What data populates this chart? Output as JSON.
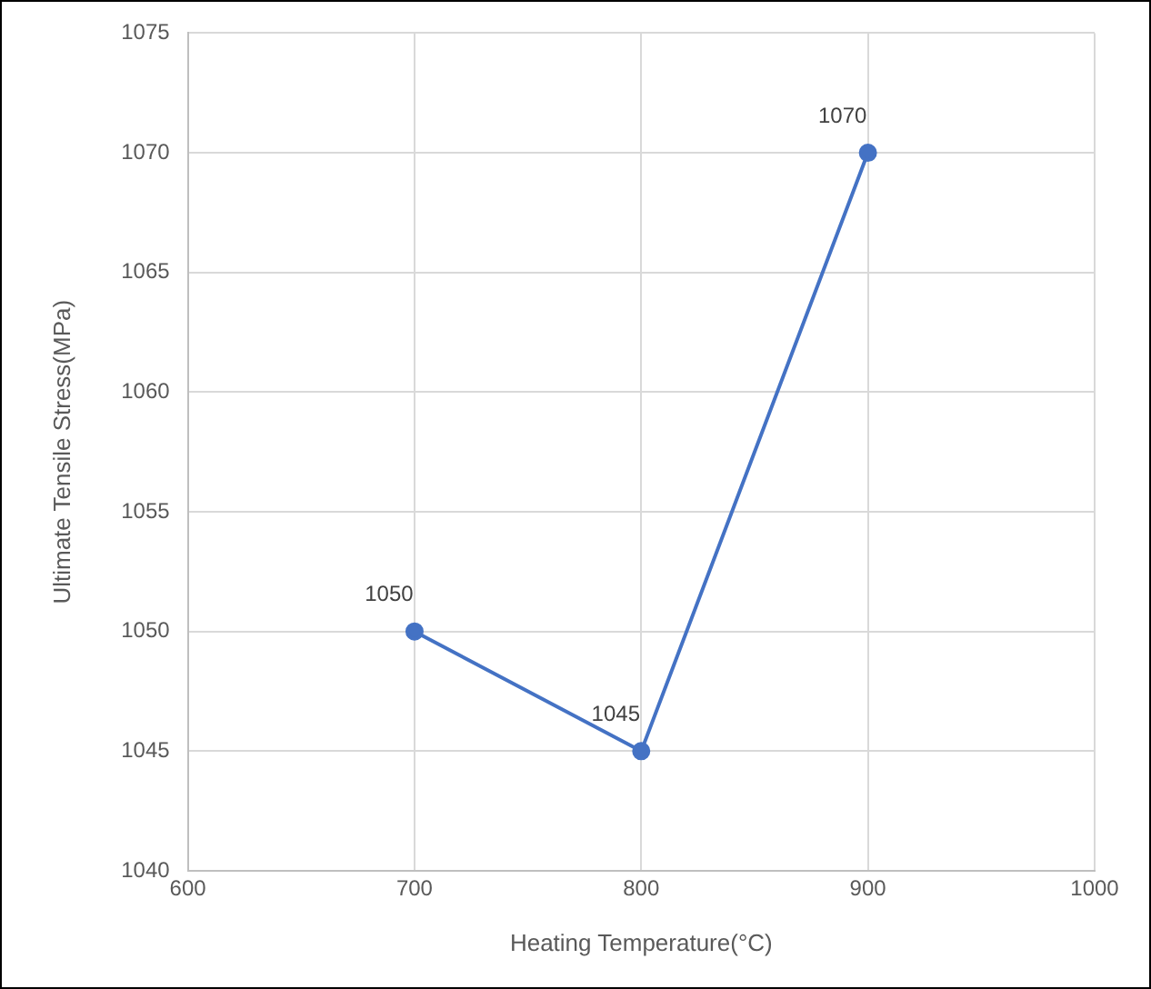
{
  "chart_data": {
    "type": "line",
    "xlabel": "Heating Temperature(°C)",
    "ylabel": "Ultimate Tensile Stress(MPa)",
    "x": [
      700,
      800,
      900
    ],
    "series": [
      {
        "color": "#4472c4",
        "values": [
          1050,
          1045,
          1070
        ]
      }
    ],
    "xlim": [
      600,
      1000
    ],
    "xticks": [
      600,
      700,
      800,
      900,
      1000
    ],
    "ylim": [
      1040,
      1075
    ],
    "yticks": [
      1040,
      1045,
      1050,
      1055,
      1060,
      1065,
      1070,
      1075
    ],
    "grid": true,
    "marker": "circle",
    "line_style": "solid",
    "data_labels": true,
    "legend": false
  }
}
